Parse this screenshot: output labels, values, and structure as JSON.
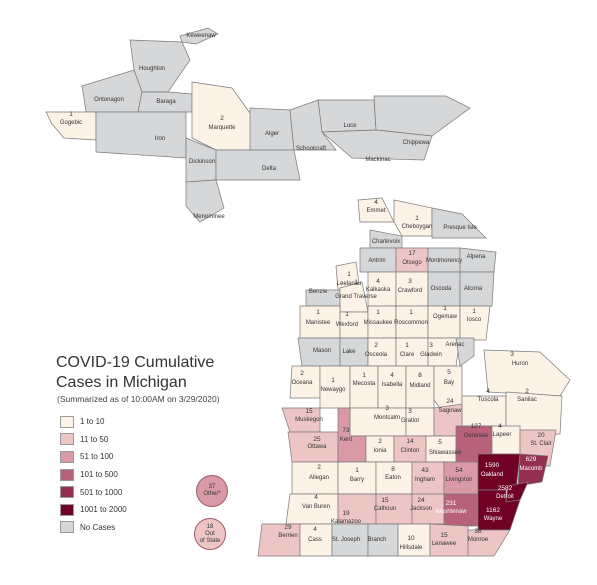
{
  "title": "COVID-19 Cumulative Cases in Michigan",
  "subtitle": "(Summarized as of 10:00AM on 3/29/2020)",
  "legend": [
    {
      "label": "1 to 10",
      "color": "#fdf2e6"
    },
    {
      "label": "11 to 50",
      "color": "#eec5c5"
    },
    {
      "label": "51 to 100",
      "color": "#d99aa6"
    },
    {
      "label": "101 to 500",
      "color": "#b8617a"
    },
    {
      "label": "501 to 1000",
      "color": "#94304f"
    },
    {
      "label": "1001 to 2000",
      "color": "#700024"
    },
    {
      "label": "No Cases",
      "color": "#d5d7d9"
    }
  ],
  "other": {
    "count": "37",
    "label": "Other*",
    "color": "#d99aa6"
  },
  "out_of_state": {
    "count": "18",
    "label1": "Out",
    "label2": "of State",
    "color": "#eec5c5"
  },
  "counties": [
    {
      "name": "Keweenaw",
      "count": ""
    },
    {
      "name": "Houghton",
      "count": ""
    },
    {
      "name": "Ontonagon",
      "count": ""
    },
    {
      "name": "Baraga",
      "count": ""
    },
    {
      "name": "Gogebic",
      "count": "1"
    },
    {
      "name": "Marquette",
      "count": "2"
    },
    {
      "name": "Iron",
      "count": ""
    },
    {
      "name": "Dickinson",
      "count": ""
    },
    {
      "name": "Alger",
      "count": ""
    },
    {
      "name": "Luce",
      "count": ""
    },
    {
      "name": "Schoolcraft",
      "count": ""
    },
    {
      "name": "Delta",
      "count": ""
    },
    {
      "name": "Chippewa",
      "count": ""
    },
    {
      "name": "Mackinac",
      "count": ""
    },
    {
      "name": "Menominee",
      "count": ""
    },
    {
      "name": "Emmet",
      "count": "4"
    },
    {
      "name": "Cheboygan",
      "count": "1"
    },
    {
      "name": "Presque Isle",
      "count": ""
    },
    {
      "name": "Charlevoix",
      "count": ""
    },
    {
      "name": "Antrim",
      "count": ""
    },
    {
      "name": "Otsego",
      "count": "17"
    },
    {
      "name": "Montmorency",
      "count": ""
    },
    {
      "name": "Alpena",
      "count": ""
    },
    {
      "name": "Leelanau",
      "count": "1"
    },
    {
      "name": "Benzie",
      "count": ""
    },
    {
      "name": "Grand Traverse",
      "count": "1"
    },
    {
      "name": "Kalkaska",
      "count": "4"
    },
    {
      "name": "Crawford",
      "count": "3"
    },
    {
      "name": "Oscoda",
      "count": ""
    },
    {
      "name": "Alcona",
      "count": ""
    },
    {
      "name": "Manistee",
      "count": "1"
    },
    {
      "name": "Wexford",
      "count": "1"
    },
    {
      "name": "Missaukee",
      "count": "1"
    },
    {
      "name": "Roscommon",
      "count": "1"
    },
    {
      "name": "Ogemaw",
      "count": "1"
    },
    {
      "name": "Iosco",
      "count": "1"
    },
    {
      "name": "Mason",
      "count": ""
    },
    {
      "name": "Lake",
      "count": ""
    },
    {
      "name": "Osceola",
      "count": "2"
    },
    {
      "name": "Clare",
      "count": "1"
    },
    {
      "name": "Gladwin",
      "count": "3"
    },
    {
      "name": "Arenac",
      "count": ""
    },
    {
      "name": "Oceana",
      "count": "2"
    },
    {
      "name": "Newaygo",
      "count": "1"
    },
    {
      "name": "Mecosta",
      "count": "1"
    },
    {
      "name": "Isabella",
      "count": "4"
    },
    {
      "name": "Midland",
      "count": "8"
    },
    {
      "name": "Bay",
      "count": "5"
    },
    {
      "name": "Huron",
      "count": "3"
    },
    {
      "name": "Tuscola",
      "count": "4"
    },
    {
      "name": "Sanilac",
      "count": "2"
    },
    {
      "name": "Muskegon",
      "count": "15"
    },
    {
      "name": "Montcalm",
      "count": "3"
    },
    {
      "name": "Gratiot",
      "count": "3"
    },
    {
      "name": "Saginaw",
      "count": "24"
    },
    {
      "name": "Ottawa",
      "count": "25"
    },
    {
      "name": "Kent",
      "count": "73"
    },
    {
      "name": "Ionia",
      "count": "2"
    },
    {
      "name": "Clinton",
      "count": "14"
    },
    {
      "name": "Shiawassee",
      "count": "5"
    },
    {
      "name": "Genesee",
      "count": "127"
    },
    {
      "name": "Lapeer",
      "count": "4"
    },
    {
      "name": "St. Clair",
      "count": "20"
    },
    {
      "name": "Allegan",
      "count": "2"
    },
    {
      "name": "Barry",
      "count": "1"
    },
    {
      "name": "Eaton",
      "count": "8"
    },
    {
      "name": "Ingham",
      "count": "43"
    },
    {
      "name": "Livingston",
      "count": "54"
    },
    {
      "name": "Oakland",
      "count": "1590"
    },
    {
      "name": "Macomb",
      "count": "629"
    },
    {
      "name": "Van Buren",
      "count": "4"
    },
    {
      "name": "Kalamazoo",
      "count": "19"
    },
    {
      "name": "Calhoun",
      "count": "15"
    },
    {
      "name": "Jackson",
      "count": "24"
    },
    {
      "name": "Washtenaw",
      "count": "231"
    },
    {
      "name": "Detroit",
      "count": "2582"
    },
    {
      "name": "Wayne",
      "count": "1162"
    },
    {
      "name": "Berrien",
      "count": "29"
    },
    {
      "name": "Cass",
      "count": "4"
    },
    {
      "name": "St. Joseph",
      "count": ""
    },
    {
      "name": "Branch",
      "count": ""
    },
    {
      "name": "Hillsdale",
      "count": "10"
    },
    {
      "name": "Lenawee",
      "count": "15"
    },
    {
      "name": "Monroe",
      "count": "38"
    }
  ]
}
